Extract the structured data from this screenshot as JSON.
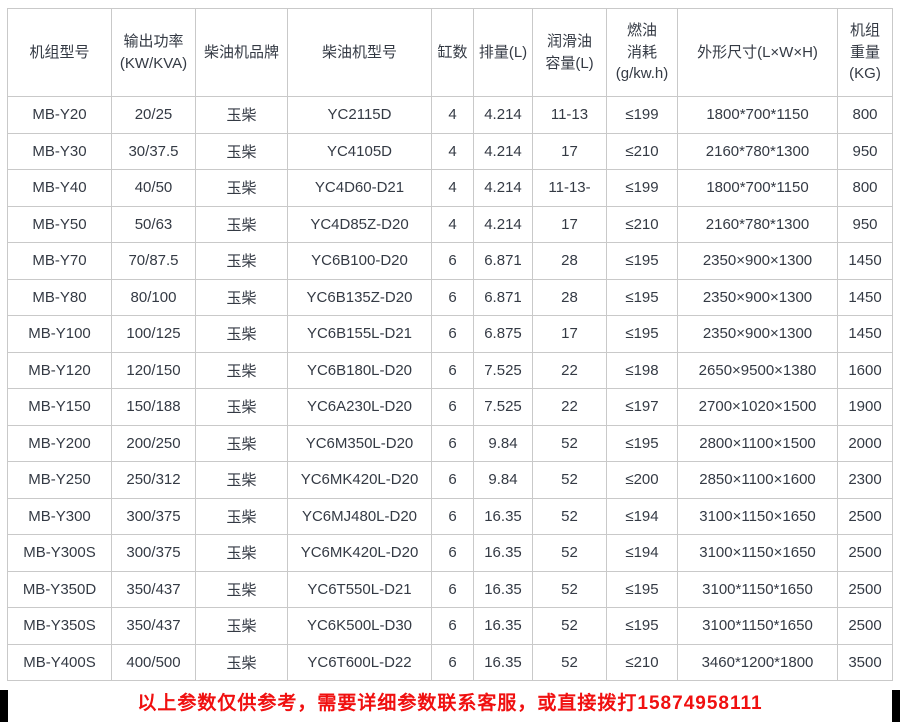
{
  "table": {
    "columns": [
      {
        "key": "model",
        "label": "机组型号"
      },
      {
        "key": "power",
        "label": "输出功率\n(KW/KVA)"
      },
      {
        "key": "brand",
        "label": "柴油机品牌"
      },
      {
        "key": "engine-model",
        "label": "柴油机型号"
      },
      {
        "key": "cylinders",
        "label": "缸数"
      },
      {
        "key": "displacement",
        "label": "排量(L)"
      },
      {
        "key": "oil-capacity",
        "label": "润滑油\n容量(L)"
      },
      {
        "key": "fuel-consumption",
        "label": "燃油\n消耗\n(g/kw.h)"
      },
      {
        "key": "dimensions",
        "label": "外形尺寸(L×W×H)"
      },
      {
        "key": "weight",
        "label": "机组\n重量\n(KG)"
      }
    ],
    "rows": [
      [
        "MB-Y20",
        "20/25",
        "玉柴",
        "YC2115D",
        "4",
        "4.214",
        "11-13",
        "≤199",
        "1800*700*1150",
        "800"
      ],
      [
        "MB-Y30",
        "30/37.5",
        "玉柴",
        "YC4105D",
        "4",
        "4.214",
        "17",
        "≤210",
        "2160*780*1300",
        "950"
      ],
      [
        "MB-Y40",
        "40/50",
        "玉柴",
        "YC4D60-D21",
        "4",
        "4.214",
        "11-13-",
        "≤199",
        "1800*700*1150",
        "800"
      ],
      [
        "MB-Y50",
        "50/63",
        "玉柴",
        "YC4D85Z-D20",
        "4",
        "4.214",
        "17",
        "≤210",
        "2160*780*1300",
        "950"
      ],
      [
        "MB-Y70",
        "70/87.5",
        "玉柴",
        "YC6B100-D20",
        "6",
        "6.871",
        "28",
        "≤195",
        "2350×900×1300",
        "1450"
      ],
      [
        "MB-Y80",
        "80/100",
        "玉柴",
        "YC6B135Z-D20",
        "6",
        "6.871",
        "28",
        "≤195",
        "2350×900×1300",
        "1450"
      ],
      [
        "MB-Y100",
        "100/125",
        "玉柴",
        "YC6B155L-D21",
        "6",
        "6.875",
        "17",
        "≤195",
        "2350×900×1300",
        "1450"
      ],
      [
        "MB-Y120",
        "120/150",
        "玉柴",
        "YC6B180L-D20",
        "6",
        "7.525",
        "22",
        "≤198",
        "2650×9500×1380",
        "1600"
      ],
      [
        "MB-Y150",
        "150/188",
        "玉柴",
        "YC6A230L-D20",
        "6",
        "7.525",
        "22",
        "≤197",
        "2700×1020×1500",
        "1900"
      ],
      [
        "MB-Y200",
        "200/250",
        "玉柴",
        "YC6M350L-D20",
        "6",
        "9.84",
        "52",
        "≤195",
        "2800×1100×1500",
        "2000"
      ],
      [
        "MB-Y250",
        "250/312",
        "玉柴",
        "YC6MK420L-D20",
        "6",
        "9.84",
        "52",
        "≤200",
        "2850×1100×1600",
        "2300"
      ],
      [
        "MB-Y300",
        "300/375",
        "玉柴",
        "YC6MJ480L-D20",
        "6",
        "16.35",
        "52",
        "≤194",
        "3100×1150×1650",
        "2500"
      ],
      [
        "MB-Y300S",
        "300/375",
        "玉柴",
        "YC6MK420L-D20",
        "6",
        "16.35",
        "52",
        "≤194",
        "3100×1150×1650",
        "2500"
      ],
      [
        "MB-Y350D",
        "350/437",
        "玉柴",
        "YC6T550L-D21",
        "6",
        "16.35",
        "52",
        "≤195",
        "3100*1150*1650",
        "2500"
      ],
      [
        "MB-Y350S",
        "350/437",
        "玉柴",
        "YC6K500L-D30",
        "6",
        "16.35",
        "52",
        "≤195",
        "3100*1150*1650",
        "2500"
      ],
      [
        "MB-Y400S",
        "400/500",
        "玉柴",
        "YC6T600L-D22",
        "6",
        "16.35",
        "52",
        "≤210",
        "3460*1200*1800",
        "3500"
      ]
    ]
  },
  "footer": {
    "notice": "以上参数仅供参考，需要详细参数联系客服，或直接拨打15874958111",
    "phone": "15874958111"
  },
  "colors": {
    "text": "#343a44",
    "border": "#c9c9c9",
    "notice_red": "#f01010",
    "background": "#ffffff",
    "edge_bar": "#000000"
  }
}
